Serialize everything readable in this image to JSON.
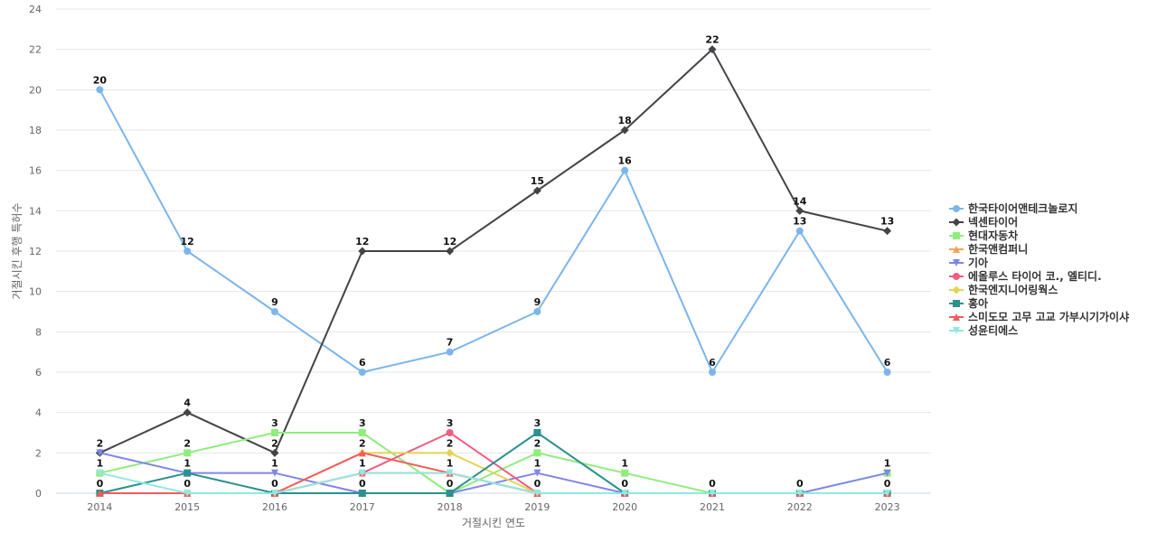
{
  "chart_data": {
    "type": "line",
    "title": "",
    "xlabel": "거절시킨 연도",
    "ylabel": "거절시킨 후행 특허수",
    "ylim": [
      0,
      24
    ],
    "yticks": [
      0,
      2,
      4,
      6,
      8,
      10,
      12,
      14,
      16,
      18,
      20,
      22,
      24
    ],
    "grid": true,
    "legend_position": "right",
    "x": [
      "2014",
      "2015",
      "2016",
      "2017",
      "2018",
      "2019",
      "2020",
      "2021",
      "2022",
      "2023"
    ],
    "series": [
      {
        "name": "한국타이어앤테크놀로지",
        "color": "#7cb5ec",
        "marker": "circle",
        "values": [
          20,
          12,
          9,
          6,
          7,
          9,
          16,
          6,
          13,
          6
        ]
      },
      {
        "name": "넥센타이어",
        "color": "#434348",
        "marker": "diamond",
        "values": [
          2,
          4,
          2,
          12,
          12,
          15,
          18,
          22,
          14,
          13
        ]
      },
      {
        "name": "현대자동차",
        "color": "#90ed7d",
        "marker": "square",
        "values": [
          1,
          2,
          3,
          3,
          0,
          2,
          1,
          0,
          0,
          1
        ]
      },
      {
        "name": "한국앤컴퍼니",
        "color": "#f7a35c",
        "marker": "triangle",
        "values": [
          0,
          0,
          0,
          1,
          1,
          0,
          0,
          0,
          0,
          0
        ]
      },
      {
        "name": "기아",
        "color": "#8085e9",
        "marker": "triangle-down",
        "values": [
          2,
          1,
          1,
          0,
          0,
          1,
          0,
          0,
          0,
          1
        ]
      },
      {
        "name": "에올루스 타이어 코., 엘티디.",
        "color": "#f15c80",
        "marker": "circle",
        "values": [
          0,
          0,
          0,
          1,
          3,
          0,
          0,
          0,
          0,
          0
        ]
      },
      {
        "name": "한국엔지니어링웍스",
        "color": "#e4d354",
        "marker": "diamond",
        "values": [
          0,
          0,
          0,
          2,
          2,
          0,
          0,
          0,
          0,
          0
        ]
      },
      {
        "name": "홍아",
        "color": "#2b908f",
        "marker": "square",
        "values": [
          0,
          1,
          0,
          0,
          0,
          3,
          0,
          0,
          0,
          0
        ]
      },
      {
        "name": "스미도모 고무 고교 가부시기가이샤",
        "color": "#f45b5b",
        "marker": "triangle",
        "values": [
          0,
          0,
          0,
          2,
          1,
          0,
          0,
          0,
          0,
          0
        ]
      },
      {
        "name": "성윤티에스",
        "color": "#91e8e1",
        "marker": "triangle-down",
        "values": [
          1,
          0,
          0,
          1,
          1,
          0,
          0,
          0,
          0,
          0
        ]
      }
    ],
    "data_labels": [
      {
        "x": "2014",
        "values": [
          20,
          2,
          1,
          0
        ]
      },
      {
        "x": "2015",
        "values": [
          12,
          4,
          2,
          1,
          0
        ]
      },
      {
        "x": "2016",
        "values": [
          9,
          3,
          2,
          1,
          0
        ]
      },
      {
        "x": "2017",
        "values": [
          12,
          6,
          3,
          2,
          1,
          0
        ]
      },
      {
        "x": "2018",
        "values": [
          12,
          7,
          3,
          2,
          1,
          0
        ]
      },
      {
        "x": "2019",
        "values": [
          15,
          9,
          3,
          2,
          1,
          0
        ]
      },
      {
        "x": "2020",
        "values": [
          18,
          16,
          1,
          0
        ]
      },
      {
        "x": "2021",
        "values": [
          22,
          6,
          0
        ]
      },
      {
        "x": "2022",
        "values": [
          14,
          13,
          0
        ]
      },
      {
        "x": "2023",
        "values": [
          13,
          6,
          1,
          0
        ]
      }
    ]
  }
}
